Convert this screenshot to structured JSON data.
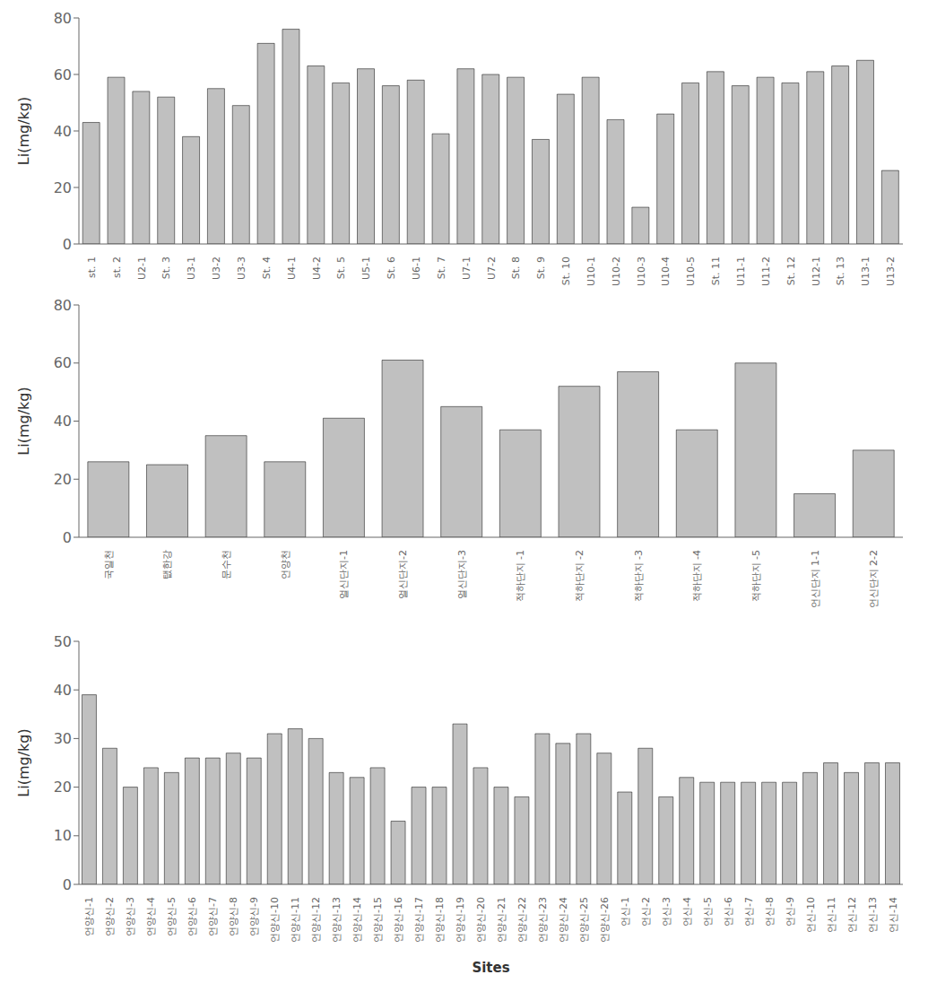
{
  "chart_data": [
    {
      "type": "bar",
      "categories": [
        "st. 1",
        "st. 2",
        "U2-1",
        "St. 3",
        "U3-1",
        "U3-2",
        "U3-3",
        "St. 4",
        "U4-1",
        "U4-2",
        "St. 5",
        "U5-1",
        "St. 6",
        "U6-1",
        "St. 7",
        "U7-1",
        "U7-2",
        "St. 8",
        "St. 9",
        "St. 10",
        "U10-1",
        "U10-2",
        "U10-3",
        "U10-4",
        "U10-5",
        "St. 11",
        "U11-1",
        "U11-2",
        "St. 12",
        "U12-1",
        "St. 13",
        "U13-1",
        "U13-2"
      ],
      "values": [
        43,
        59,
        54,
        52,
        38,
        55,
        49,
        71,
        76,
        63,
        57,
        62,
        56,
        58,
        39,
        62,
        60,
        59,
        37,
        53,
        59,
        44,
        13,
        46,
        57,
        61,
        56,
        59,
        57,
        61,
        63,
        65,
        26
      ],
      "color": "#c0c0c0",
      "ylim": [
        0,
        80
      ],
      "yticks": [
        0,
        20,
        40,
        60,
        80
      ],
      "ylabel": "Li(mg/kg)",
      "grid": false
    },
    {
      "type": "bar",
      "categories": [
        "국일천",
        "탮한강",
        "문수천",
        "언양천",
        "얼신단지-1",
        "얼신단지-2",
        "얼신단지-3",
        "적하단지 -1",
        "적하단지 -2",
        "적하단지 -3",
        "적하단지 -4",
        "적하단지 -5",
        "언신단지 1-1",
        "언신단지 2-2"
      ],
      "values": [
        26,
        25,
        35,
        26,
        41,
        61,
        45,
        37,
        52,
        57,
        37,
        60,
        15,
        30
      ],
      "color": "#c0c0c0",
      "ylim": [
        0,
        80
      ],
      "yticks": [
        0,
        20,
        40,
        60,
        80
      ],
      "ylabel": "Li(mg/kg)",
      "grid": false
    },
    {
      "type": "bar",
      "categories": [
        "언양신-1",
        "언양신-2",
        "언양신-3",
        "언양신-4",
        "언양신-5",
        "언양신-6",
        "언양신-7",
        "언양신-8",
        "언양신-9",
        "언양신-10",
        "언양신-11",
        "언양신-12",
        "언양신-13",
        "언양신-14",
        "언양신-15",
        "언양신-16",
        "언양신-17",
        "언양신-18",
        "언양신-19",
        "언양신-20",
        "언양신-21",
        "언양신-22",
        "언양신-23",
        "언양신-24",
        "언양신-25",
        "언양신-26",
        "언신-1",
        "언신-2",
        "언신-3",
        "언신-4",
        "언신-5",
        "언신-6",
        "언신-7",
        "언신-8",
        "언신-9",
        "언신-10",
        "언신-11",
        "언신-12",
        "언신-13",
        "언신-14"
      ],
      "values": [
        39,
        28,
        20,
        24,
        23,
        26,
        26,
        27,
        26,
        31,
        32,
        30,
        23,
        22,
        24,
        13,
        20,
        20,
        33,
        24,
        20,
        18,
        31,
        29,
        31,
        27,
        19,
        28,
        18,
        22,
        21,
        21,
        21,
        21,
        21,
        23,
        25,
        23,
        25,
        25
      ],
      "color": "#c0c0c0",
      "ylim": [
        0,
        50
      ],
      "yticks": [
        0,
        10,
        20,
        30,
        40,
        50
      ],
      "ylabel": "Li(mg/kg)",
      "xlabel": "Sites",
      "grid": false
    }
  ]
}
